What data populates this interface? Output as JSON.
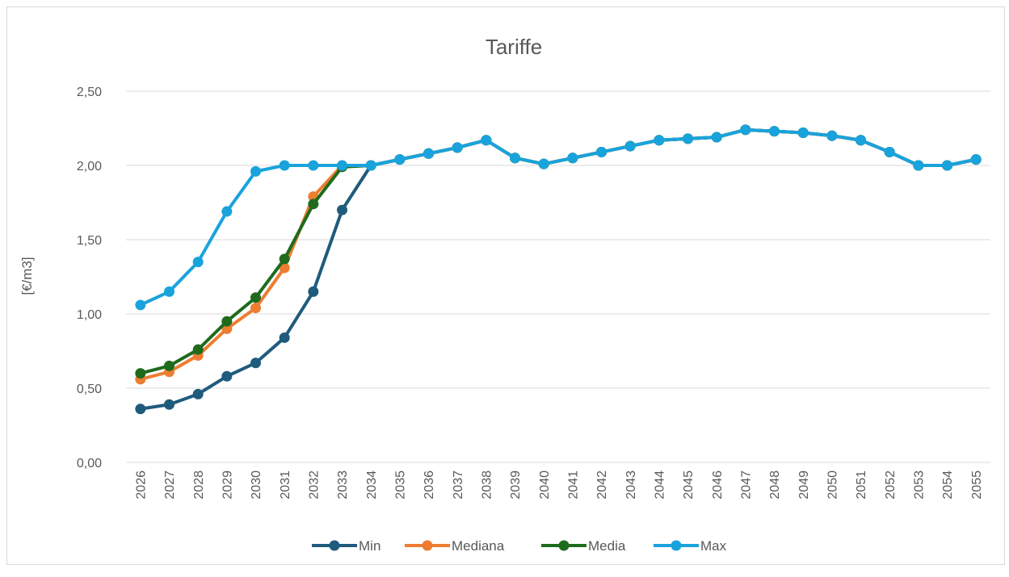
{
  "chart_data": {
    "type": "line",
    "title": "Tariffe",
    "ylabel": "[€/m3]",
    "xlabel": "",
    "ylim": [
      0,
      2.5
    ],
    "y_ticks": [
      "0,00",
      "0,50",
      "1,00",
      "1,50",
      "2,00",
      "2,50"
    ],
    "grid": true,
    "legend_position": "bottom",
    "categories": [
      "2026",
      "2027",
      "2028",
      "2029",
      "2030",
      "2031",
      "2032",
      "2033",
      "2034",
      "2035",
      "2036",
      "2037",
      "2038",
      "2039",
      "2040",
      "2041",
      "2042",
      "2043",
      "2044",
      "2045",
      "2046",
      "2047",
      "2048",
      "2049",
      "2050",
      "2051",
      "2052",
      "2053",
      "2054",
      "2055"
    ],
    "series": [
      {
        "name": "Min",
        "color": "#1f5b7c",
        "values": [
          0.36,
          0.39,
          0.46,
          0.58,
          0.67,
          0.84,
          1.15,
          1.7,
          2.0,
          2.04,
          2.08,
          2.12,
          2.17,
          2.05,
          2.01,
          2.05,
          2.09,
          2.13,
          2.17,
          2.18,
          2.19,
          2.24,
          2.23,
          2.22,
          2.2,
          2.17,
          2.09,
          2.0,
          2.0,
          2.04
        ]
      },
      {
        "name": "Mediana",
        "color": "#ed7d31",
        "values": [
          0.56,
          0.61,
          0.72,
          0.9,
          1.04,
          1.31,
          1.79,
          2.0,
          2.0,
          2.04,
          2.08,
          2.12,
          2.17,
          2.05,
          2.01,
          2.05,
          2.09,
          2.13,
          2.17,
          2.18,
          2.19,
          2.24,
          2.23,
          2.22,
          2.2,
          2.17,
          2.09,
          2.0,
          2.0,
          2.04
        ]
      },
      {
        "name": "Media",
        "color": "#1e6b1e",
        "values": [
          0.6,
          0.65,
          0.76,
          0.95,
          1.11,
          1.37,
          1.74,
          1.99,
          2.0,
          2.04,
          2.08,
          2.12,
          2.17,
          2.05,
          2.01,
          2.05,
          2.09,
          2.13,
          2.17,
          2.18,
          2.19,
          2.24,
          2.23,
          2.22,
          2.2,
          2.17,
          2.09,
          2.0,
          2.0,
          2.04
        ]
      },
      {
        "name": "Max",
        "color": "#19a3dc",
        "values": [
          1.06,
          1.15,
          1.35,
          1.69,
          1.96,
          2.0,
          2.0,
          2.0,
          2.0,
          2.04,
          2.08,
          2.12,
          2.17,
          2.05,
          2.01,
          2.05,
          2.09,
          2.13,
          2.17,
          2.18,
          2.19,
          2.24,
          2.23,
          2.22,
          2.2,
          2.17,
          2.09,
          2.0,
          2.0,
          2.04
        ]
      }
    ]
  }
}
